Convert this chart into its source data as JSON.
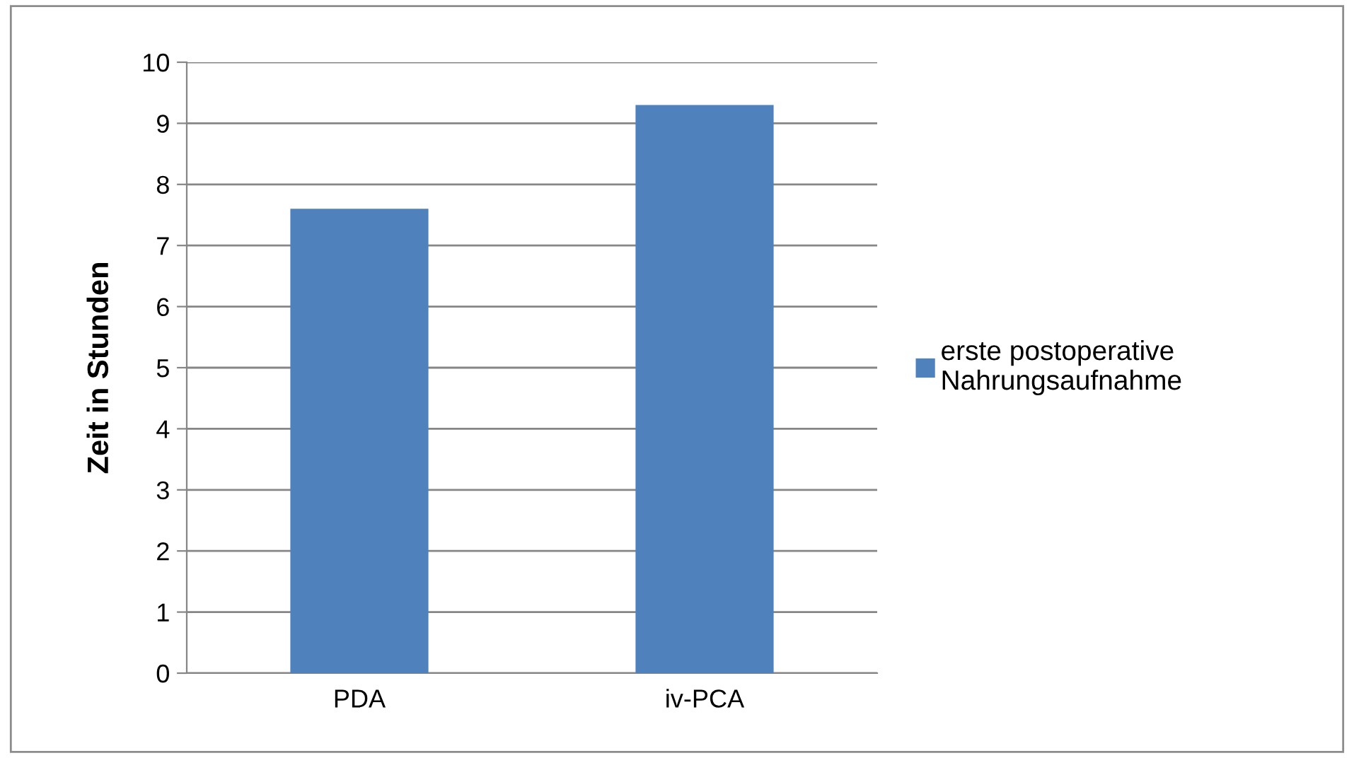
{
  "chart_data": {
    "type": "bar",
    "ylabel": "Zeit in Stunden",
    "categories": [
      "PDA",
      "iv-PCA"
    ],
    "series": [
      {
        "name": "erste postoperative\nNahrungsaufnahme",
        "color": "#4f81bd",
        "values": [
          7.6,
          9.3
        ]
      }
    ],
    "ylim": [
      0,
      10
    ],
    "yticks": [
      0,
      1,
      2,
      3,
      4,
      5,
      6,
      7,
      8,
      9,
      10
    ],
    "grid": "y",
    "legend": "right"
  }
}
